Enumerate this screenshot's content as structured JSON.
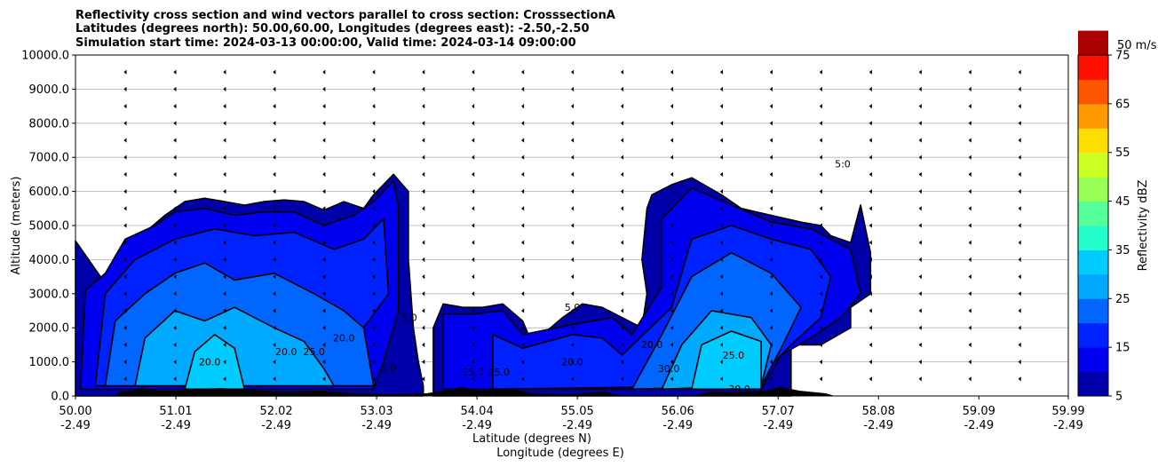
{
  "chart_data": {
    "type": "heatmap",
    "title_lines": [
      "Reflectivity cross section and wind vectors parallel to cross section: CrosssectionA",
      "Latitudes (degrees north): 50.00,60.00, Longitudes (degrees east): -2.50,-2.50",
      "Simulation start time: 2024-03-13 00:00:00, Valid time: 2024-03-14 09:00:00"
    ],
    "xlabel": "Latitude (degrees N)",
    "xlabel2": "Longitude (degrees E)",
    "ylabel": "Altitude (meters)",
    "xlim": [
      50.0,
      59.99
    ],
    "ylim": [
      0,
      10000
    ],
    "x_ticks": [
      {
        "lat": "50.00",
        "lon": "-2.49",
        "value": 50.0
      },
      {
        "lat": "51.01",
        "lon": "-2.49",
        "value": 51.01
      },
      {
        "lat": "52.02",
        "lon": "-2.49",
        "value": 52.02
      },
      {
        "lat": "53.03",
        "lon": "-2.49",
        "value": 53.03
      },
      {
        "lat": "54.04",
        "lon": "-2.49",
        "value": 54.04
      },
      {
        "lat": "55.05",
        "lon": "-2.49",
        "value": 55.05
      },
      {
        "lat": "56.06",
        "lon": "-2.49",
        "value": 56.06
      },
      {
        "lat": "57.07",
        "lon": "-2.49",
        "value": 57.07
      },
      {
        "lat": "58.08",
        "lon": "-2.49",
        "value": 58.08
      },
      {
        "lat": "59.09",
        "lon": "-2.49",
        "value": 59.09
      },
      {
        "lat": "59.99",
        "lon": "-2.49",
        "value": 59.99
      }
    ],
    "y_ticks": [
      {
        "label": "0.0",
        "value": 0
      },
      {
        "label": "1000.0",
        "value": 1000
      },
      {
        "label": "2000.0",
        "value": 2000
      },
      {
        "label": "3000.0",
        "value": 3000
      },
      {
        "label": "4000.0",
        "value": 4000
      },
      {
        "label": "5000.0",
        "value": 5000
      },
      {
        "label": "6000.0",
        "value": 6000
      },
      {
        "label": "7000.0",
        "value": 7000
      },
      {
        "label": "8000.0",
        "value": 8000
      },
      {
        "label": "9000.0",
        "value": 9000
      },
      {
        "label": "10000.0",
        "value": 10000
      }
    ],
    "grid": "horizontal",
    "colorbar": {
      "label": "Reflectivity dBZ",
      "min": 5,
      "max": 75,
      "step": 5,
      "tick_labels": [
        "5",
        "15",
        "25",
        "35",
        "45",
        "55",
        "65",
        "75"
      ],
      "colors": [
        "#0000aa",
        "#0000ee",
        "#0022ff",
        "#0066ff",
        "#00aaff",
        "#00ccff",
        "#22ffcc",
        "#55ff99",
        "#99ff55",
        "#ccff22",
        "#ffdd00",
        "#ff9900",
        "#ff5500",
        "#ff1100",
        "#aa0000"
      ]
    },
    "wind_key": {
      "label": "50 m/s",
      "value": 50
    },
    "wind_u_ms": -5,
    "cloud_regions": [
      {
        "fill": "#0000aa",
        "points": [
          [
            50.0,
            0
          ],
          [
            50.0,
            4550
          ],
          [
            50.3,
            3300
          ],
          [
            50.5,
            3600
          ],
          [
            50.7,
            4800
          ],
          [
            50.9,
            5300
          ],
          [
            51.1,
            5700
          ],
          [
            51.3,
            5800
          ],
          [
            51.5,
            5700
          ],
          [
            51.7,
            5600
          ],
          [
            51.9,
            5700
          ],
          [
            52.1,
            5750
          ],
          [
            52.3,
            5700
          ],
          [
            52.5,
            5450
          ],
          [
            52.7,
            5700
          ],
          [
            52.9,
            5500
          ],
          [
            53.0,
            5900
          ],
          [
            53.2,
            6500
          ],
          [
            53.35,
            6000
          ],
          [
            53.35,
            4000
          ],
          [
            53.4,
            2000
          ],
          [
            53.45,
            1000
          ],
          [
            53.5,
            300
          ],
          [
            53.5,
            0
          ]
        ]
      },
      {
        "fill": "#0000aa",
        "points": [
          [
            53.6,
            0
          ],
          [
            53.6,
            2000
          ],
          [
            53.7,
            2700
          ],
          [
            53.9,
            2600
          ],
          [
            54.1,
            2600
          ],
          [
            54.3,
            2700
          ],
          [
            54.5,
            2200
          ],
          [
            54.6,
            1500
          ],
          [
            54.7,
            1800
          ],
          [
            54.9,
            2300
          ],
          [
            55.1,
            2700
          ],
          [
            55.3,
            2600
          ],
          [
            55.5,
            2300
          ],
          [
            55.7,
            2000
          ],
          [
            55.75,
            3000
          ],
          [
            55.7,
            4000
          ],
          [
            55.75,
            5500
          ],
          [
            55.8,
            5900
          ],
          [
            56.0,
            6200
          ],
          [
            56.2,
            6400
          ],
          [
            56.5,
            5900
          ],
          [
            56.7,
            5500
          ],
          [
            57.0,
            5300
          ],
          [
            57.3,
            5100
          ],
          [
            57.5,
            5000
          ],
          [
            57.6,
            4700
          ],
          [
            57.8,
            4500
          ],
          [
            57.9,
            5600
          ],
          [
            58.0,
            4200
          ],
          [
            58.0,
            3000
          ],
          [
            57.8,
            2600
          ],
          [
            57.8,
            2000
          ],
          [
            57.5,
            1500
          ],
          [
            57.2,
            1500
          ],
          [
            57.2,
            0
          ]
        ]
      },
      {
        "fill": "#0000ee",
        "points": [
          [
            50.05,
            200
          ],
          [
            50.1,
            3100
          ],
          [
            50.3,
            3600
          ],
          [
            50.5,
            4600
          ],
          [
            50.8,
            5000
          ],
          [
            51.0,
            5400
          ],
          [
            51.3,
            5500
          ],
          [
            51.6,
            5300
          ],
          [
            51.9,
            5400
          ],
          [
            52.2,
            5400
          ],
          [
            52.5,
            5000
          ],
          [
            52.8,
            5300
          ],
          [
            53.0,
            5700
          ],
          [
            53.2,
            6300
          ],
          [
            53.25,
            5500
          ],
          [
            53.25,
            2500
          ],
          [
            53.1,
            1000
          ],
          [
            53.0,
            200
          ]
        ]
      },
      {
        "fill": "#0000ee",
        "points": [
          [
            53.7,
            200
          ],
          [
            53.7,
            2400
          ],
          [
            54.0,
            2400
          ],
          [
            54.3,
            2500
          ],
          [
            54.5,
            1800
          ],
          [
            55.0,
            2100
          ],
          [
            55.4,
            2300
          ],
          [
            55.6,
            1800
          ],
          [
            55.9,
            3200
          ],
          [
            55.9,
            5200
          ],
          [
            56.2,
            6100
          ],
          [
            56.6,
            5600
          ],
          [
            57.0,
            5100
          ],
          [
            57.4,
            4900
          ],
          [
            57.8,
            4300
          ],
          [
            57.9,
            3000
          ],
          [
            57.7,
            2300
          ],
          [
            57.4,
            1700
          ],
          [
            57.1,
            1200
          ],
          [
            56.9,
            200
          ]
        ]
      },
      {
        "fill": "#0022ff",
        "points": [
          [
            50.2,
            300
          ],
          [
            50.3,
            3000
          ],
          [
            50.6,
            4000
          ],
          [
            51.0,
            4600
          ],
          [
            51.4,
            4900
          ],
          [
            51.8,
            4700
          ],
          [
            52.2,
            4800
          ],
          [
            52.6,
            4300
          ],
          [
            52.9,
            4600
          ],
          [
            53.1,
            5200
          ],
          [
            53.15,
            3000
          ],
          [
            52.9,
            2000
          ],
          [
            52.7,
            1200
          ],
          [
            52.5,
            300
          ]
        ]
      },
      {
        "fill": "#0022ff",
        "points": [
          [
            54.2,
            200
          ],
          [
            54.2,
            1800
          ],
          [
            54.5,
            1400
          ],
          [
            55.0,
            1800
          ],
          [
            55.3,
            1700
          ],
          [
            55.5,
            1200
          ],
          [
            56.0,
            2600
          ],
          [
            56.2,
            4600
          ],
          [
            56.6,
            5000
          ],
          [
            57.0,
            4600
          ],
          [
            57.4,
            4300
          ],
          [
            57.6,
            3500
          ],
          [
            57.5,
            2300
          ],
          [
            57.2,
            1500
          ],
          [
            56.8,
            300
          ]
        ]
      },
      {
        "fill": "#0066ff",
        "points": [
          [
            50.3,
            300
          ],
          [
            50.4,
            2200
          ],
          [
            50.7,
            3000
          ],
          [
            51.0,
            3600
          ],
          [
            51.3,
            3900
          ],
          [
            51.6,
            3400
          ],
          [
            52.0,
            3600
          ],
          [
            52.4,
            3000
          ],
          [
            52.7,
            2500
          ],
          [
            52.9,
            2000
          ],
          [
            53.0,
            300
          ]
        ]
      },
      {
        "fill": "#0066ff",
        "points": [
          [
            55.6,
            200
          ],
          [
            55.9,
            1800
          ],
          [
            56.2,
            3500
          ],
          [
            56.6,
            4200
          ],
          [
            57.0,
            3600
          ],
          [
            57.3,
            2600
          ],
          [
            57.1,
            1400
          ],
          [
            56.9,
            300
          ]
        ]
      },
      {
        "fill": "#00aaff",
        "points": [
          [
            50.6,
            300
          ],
          [
            50.7,
            1700
          ],
          [
            51.0,
            2500
          ],
          [
            51.3,
            2200
          ],
          [
            51.6,
            2600
          ],
          [
            52.0,
            2000
          ],
          [
            52.3,
            1600
          ],
          [
            52.5,
            800
          ],
          [
            52.6,
            300
          ]
        ]
      },
      {
        "fill": "#00aaff",
        "points": [
          [
            55.9,
            200
          ],
          [
            56.1,
            1500
          ],
          [
            56.4,
            2500
          ],
          [
            56.8,
            2300
          ],
          [
            57.0,
            1500
          ],
          [
            56.9,
            300
          ]
        ]
      },
      {
        "fill": "#00ccff",
        "points": [
          [
            51.1,
            200
          ],
          [
            51.2,
            1300
          ],
          [
            51.4,
            1800
          ],
          [
            51.6,
            1400
          ],
          [
            51.7,
            200
          ]
        ]
      },
      {
        "fill": "#00ccff",
        "points": [
          [
            56.2,
            200
          ],
          [
            56.3,
            1500
          ],
          [
            56.6,
            1900
          ],
          [
            56.9,
            1600
          ],
          [
            56.9,
            200
          ]
        ]
      }
    ],
    "contour_labels": [
      {
        "text": "5.0",
        "x": 53.15,
        "y": 700
      },
      {
        "text": "5.0",
        "x": 53.36,
        "y": 2200
      },
      {
        "text": "5.0",
        "x": 55.0,
        "y": 2500
      },
      {
        "text": "5:0",
        "x": 57.72,
        "y": 6700
      },
      {
        "text": "20.0",
        "x": 51.35,
        "y": 900
      },
      {
        "text": "20.0",
        "x": 52.12,
        "y": 1200
      },
      {
        "text": "25.0",
        "x": 52.4,
        "y": 1200
      },
      {
        "text": "20.0",
        "x": 52.7,
        "y": 1600
      },
      {
        "text": "25.0",
        "x": 54.0,
        "y": 600
      },
      {
        "text": "25.0",
        "x": 54.26,
        "y": 600
      },
      {
        "text": "20.0",
        "x": 55.0,
        "y": 900
      },
      {
        "text": "20.0",
        "x": 55.8,
        "y": 1400
      },
      {
        "text": "30.0",
        "x": 55.97,
        "y": 700
      },
      {
        "text": "25.0",
        "x": 56.62,
        "y": 1100
      },
      {
        "text": "30.0",
        "x": 56.68,
        "y": 100
      }
    ]
  }
}
